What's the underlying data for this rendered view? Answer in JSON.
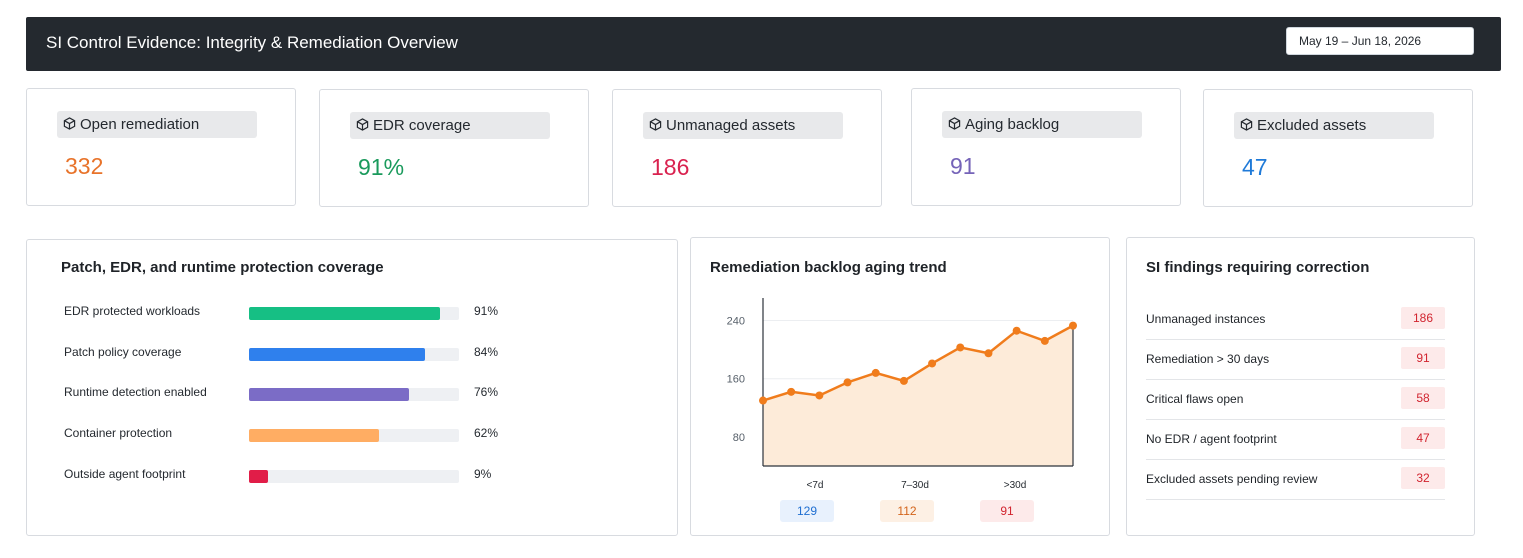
{
  "header": {
    "title": "SI Control Evidence: Integrity & Remediation Overview",
    "date_range": "May 19 – Jun 18, 2026"
  },
  "kpis": [
    {
      "label": "Open remediation",
      "value": "332",
      "color": "#e8732a",
      "icon": "cube-icon"
    },
    {
      "label": "EDR coverage",
      "value": "91%",
      "color": "#1a9a5c",
      "icon": "cube-icon"
    },
    {
      "label": "Unmanaged assets",
      "value": "186",
      "color": "#d9224f",
      "icon": "cube-icon"
    },
    {
      "label": "Aging backlog",
      "value": "91",
      "color": "#7563b8",
      "icon": "cube-icon"
    },
    {
      "label": "Excluded assets",
      "value": "47",
      "color": "#1f7ad8",
      "icon": "cube-icon"
    }
  ],
  "coverage": {
    "title": "Patch, EDR, and runtime protection coverage",
    "rows": [
      {
        "name": "EDR protected workloads",
        "pct_label": "91%",
        "value": 91,
        "color": "#16bf84"
      },
      {
        "name": "Patch policy coverage",
        "pct_label": "84%",
        "value": 84,
        "color": "#2f80ed"
      },
      {
        "name": "Runtime detection enabled",
        "pct_label": "76%",
        "value": 76,
        "color": "#7b6cc6"
      },
      {
        "name": "Container protection",
        "pct_label": "62%",
        "value": 62,
        "color": "#ffad63"
      },
      {
        "name": "Outside agent footprint",
        "pct_label": "9%",
        "value": 9,
        "color": "#e11d48"
      }
    ]
  },
  "trend": {
    "title": "Remediation backlog aging trend",
    "badges": [
      {
        "category": "<7d",
        "value": "129",
        "bg": "#e8f1fd",
        "fg": "#1f6fd1"
      },
      {
        "category": "7–30d",
        "value": "112",
        "bg": "#fdf0e4",
        "fg": "#d3641b"
      },
      {
        "category": ">30d",
        "value": "91",
        "bg": "#fdeaea",
        "fg": "#d1242f"
      }
    ]
  },
  "chart_data": {
    "type": "area",
    "title": "Remediation backlog aging trend",
    "yticks": [
      "240",
      "160",
      "80"
    ],
    "ylim": [
      40,
      260
    ],
    "xticks": [
      "<7d",
      "7–30d",
      ">30d"
    ],
    "series": [
      {
        "values": [
          130,
          142,
          137,
          155,
          168,
          157,
          181,
          203,
          195,
          226,
          212,
          233
        ]
      }
    ],
    "line_color": "#f07c1c",
    "fill_color": "#fdebd9",
    "grid": true
  },
  "findings": {
    "title": "SI findings requiring correction",
    "rows": [
      {
        "name": "Unmanaged instances",
        "count": "186"
      },
      {
        "name": "Remediation > 30 days",
        "count": "91"
      },
      {
        "name": "Critical flaws open",
        "count": "58"
      },
      {
        "name": "No EDR / agent footprint",
        "count": "47"
      },
      {
        "name": "Excluded assets pending review",
        "count": "32"
      }
    ]
  }
}
